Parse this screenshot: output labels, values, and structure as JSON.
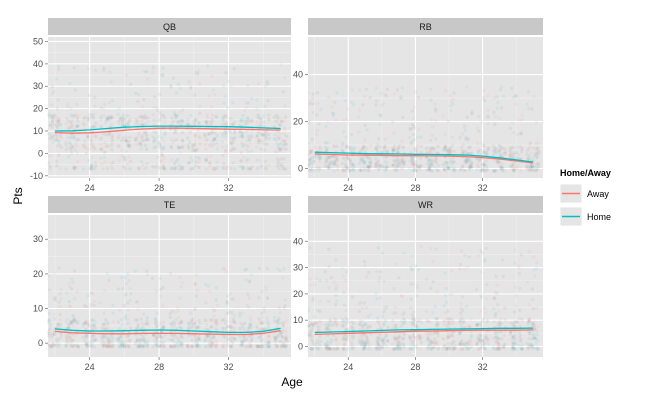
{
  "chart_data": {
    "type": "scatter",
    "xlabel": "Age",
    "ylabel": "Pts",
    "legend": {
      "title": "Home/Away",
      "placement": "right",
      "entries": [
        {
          "label": "Away",
          "color": "#F8766D"
        },
        {
          "label": "Home",
          "color": "#00BFC4"
        }
      ]
    },
    "grid": true,
    "xlim": [
      21.6,
      35.6
    ],
    "x_ticks": [
      24,
      28,
      32
    ],
    "x_tick_labels": [
      "24",
      "28",
      "32"
    ],
    "series_colors": {
      "Away": "#F8766D",
      "Home": "#00BFC4",
      "overlap": "#666666"
    },
    "panels": [
      {
        "title": "QB",
        "ylim": [
          -11,
          52
        ],
        "y_ticks": [
          -10,
          0,
          10,
          20,
          30,
          40,
          50
        ],
        "y_tick_labels": [
          "-10",
          "0",
          "10",
          "20",
          "30",
          "40",
          "50"
        ],
        "x_tick_labels": [
          "24",
          "28",
          "32"
        ],
        "scatter": {
          "ages": [
            22,
            23,
            24,
            25,
            26,
            27,
            28,
            29,
            30,
            31,
            32,
            33,
            34,
            35
          ],
          "center": 10,
          "spread": 9,
          "floor": -7,
          "cap": 40
        },
        "series": [
          {
            "name": "Away",
            "x": [
              22,
              23,
              24,
              25,
              26,
              27,
              28,
              29,
              30,
              31,
              32,
              33,
              34,
              35
            ],
            "y": [
              9.3,
              9.0,
              9.2,
              9.7,
              10.3,
              10.9,
              11.2,
              11.3,
              11.1,
              11.0,
              10.8,
              10.7,
              10.5,
              10.4
            ]
          },
          {
            "name": "Home",
            "x": [
              22,
              23,
              24,
              25,
              26,
              27,
              28,
              29,
              30,
              31,
              32,
              33,
              34,
              35
            ],
            "y": [
              10.0,
              10.1,
              10.5,
              11.1,
              11.7,
              12.0,
              12.2,
              12.2,
              12.1,
              12.0,
              11.9,
              11.7,
              11.4,
              11.1
            ]
          }
        ]
      },
      {
        "title": "RB",
        "ylim": [
          -4,
          56
        ],
        "y_ticks": [
          0,
          20,
          40
        ],
        "y_tick_labels": [
          "0",
          "20",
          "40"
        ],
        "x_tick_labels": [
          "24",
          "28",
          "32"
        ],
        "scatter": {
          "ages": [
            22,
            23,
            24,
            25,
            26,
            27,
            28,
            29,
            30,
            31,
            32,
            33,
            34,
            35
          ],
          "center": 5,
          "spread": 6,
          "floor": -1,
          "cap": 35
        },
        "series": [
          {
            "name": "Away",
            "x": [
              22,
              23,
              24,
              25,
              26,
              27,
              28,
              29,
              30,
              31,
              32,
              33,
              34,
              35
            ],
            "y": [
              6.2,
              6.0,
              5.8,
              5.7,
              5.6,
              5.5,
              5.5,
              5.4,
              5.3,
              5.1,
              4.7,
              4.1,
              3.3,
              2.4
            ]
          },
          {
            "name": "Home",
            "x": [
              22,
              23,
              24,
              25,
              26,
              27,
              28,
              29,
              30,
              31,
              32,
              33,
              34,
              35
            ],
            "y": [
              7.0,
              6.8,
              6.6,
              6.4,
              6.3,
              6.2,
              6.1,
              6.0,
              5.9,
              5.8,
              5.3,
              4.6,
              3.7,
              2.8
            ]
          }
        ]
      },
      {
        "title": "TE",
        "ylim": [
          -4,
          37
        ],
        "y_ticks": [
          0,
          10,
          20,
          30
        ],
        "y_tick_labels": [
          "0",
          "10",
          "20",
          "30"
        ],
        "x_tick_labels": [
          "24",
          "28",
          "32"
        ],
        "scatter": {
          "ages": [
            22,
            23,
            24,
            25,
            26,
            27,
            28,
            29,
            30,
            31,
            32,
            33,
            34,
            35
          ],
          "center": 3,
          "spread": 5,
          "floor": -1,
          "cap": 22
        },
        "series": [
          {
            "name": "Away",
            "x": [
              22,
              23,
              24,
              25,
              26,
              27,
              28,
              29,
              30,
              31,
              32,
              33,
              34,
              35
            ],
            "y": [
              3.4,
              3.0,
              2.8,
              2.7,
              2.7,
              2.8,
              2.8,
              2.8,
              2.7,
              2.6,
              2.5,
              2.5,
              2.8,
              3.6
            ]
          },
          {
            "name": "Home",
            "x": [
              22,
              23,
              24,
              25,
              26,
              27,
              28,
              29,
              30,
              31,
              32,
              33,
              34,
              35
            ],
            "y": [
              4.1,
              3.7,
              3.5,
              3.5,
              3.6,
              3.7,
              3.8,
              3.7,
              3.5,
              3.3,
              3.1,
              3.1,
              3.4,
              4.3
            ]
          }
        ]
      },
      {
        "title": "WR",
        "ylim": [
          -4,
          50
        ],
        "y_ticks": [
          0,
          10,
          20,
          30,
          40
        ],
        "y_tick_labels": [
          "0",
          "10",
          "20",
          "30",
          "40"
        ],
        "x_tick_labels": [
          "24",
          "28",
          "32"
        ],
        "scatter": {
          "ages": [
            22,
            23,
            24,
            25,
            26,
            27,
            28,
            29,
            30,
            31,
            32,
            33,
            34,
            35
          ],
          "center": 5,
          "spread": 7,
          "floor": -1,
          "cap": 38
        },
        "series": [
          {
            "name": "Away",
            "x": [
              22,
              23,
              24,
              25,
              26,
              27,
              28,
              29,
              30,
              31,
              32,
              33,
              34,
              35
            ],
            "y": [
              4.6,
              4.8,
              5.0,
              5.2,
              5.4,
              5.6,
              5.8,
              5.9,
              6.0,
              6.1,
              6.2,
              6.2,
              6.2,
              6.3
            ]
          },
          {
            "name": "Home",
            "x": [
              22,
              23,
              24,
              25,
              26,
              27,
              28,
              29,
              30,
              31,
              32,
              33,
              34,
              35
            ],
            "y": [
              5.3,
              5.5,
              5.7,
              5.9,
              6.1,
              6.3,
              6.4,
              6.5,
              6.6,
              6.7,
              6.8,
              6.9,
              6.9,
              7.0
            ]
          }
        ]
      }
    ]
  }
}
